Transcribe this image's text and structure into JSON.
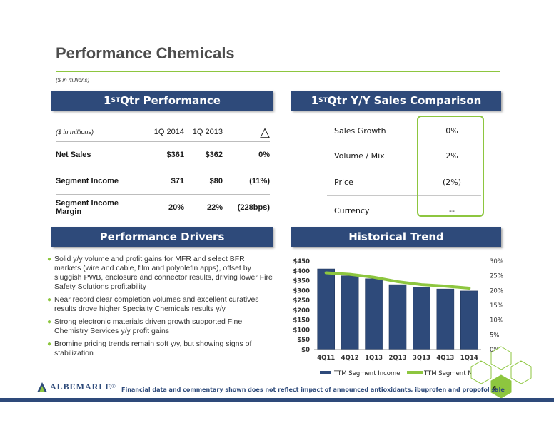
{
  "header": {
    "title": "Performance Chemicals",
    "subtitle": "($ in millions)"
  },
  "banners": {
    "performance": {
      "pre": "1",
      "sup": "ST",
      "post": " Qtr Performance"
    },
    "comparison": {
      "pre": "1",
      "sup": "ST",
      "post": " Qtr Y/Y Sales Comparison"
    },
    "drivers": "Performance Drivers",
    "trend": "Historical Trend"
  },
  "performance_table": {
    "header": [
      "($ in millions)",
      "1Q 2014",
      "1Q 2013",
      "△"
    ],
    "rows": [
      [
        "Net Sales",
        "$361",
        "$362",
        "0%"
      ],
      [
        "Segment Income",
        "$71",
        "$80",
        "(11%)"
      ],
      [
        "Segment Income Margin",
        "20%",
        "22%",
        "(228bps)"
      ]
    ]
  },
  "sales_comparison": [
    {
      "label": "Sales Growth",
      "value": "0%"
    },
    {
      "label": "Volume / Mix",
      "value": "2%"
    },
    {
      "label": "Price",
      "value": "(2%)"
    },
    {
      "label": "Currency",
      "value": "--"
    }
  ],
  "drivers": [
    "Solid y/y volume and profit gains for MFR and select BFR markets (wire and cable, film and polyolefin apps), offset by sluggish PWB, enclosure and connector results, driving lower Fire Safety Solutions profitability",
    "Near record clear completion volumes and excellent curatives results drove higher Specialty Chemicals results y/y",
    "Strong electronic materials driven growth supported Fine Chemistry Services y/y profit gains",
    "Bromine pricing trends remain soft y/y, but showing signs of stabilization"
  ],
  "chart_data": {
    "type": "bar",
    "categories": [
      "4Q11",
      "4Q12",
      "1Q13",
      "2Q13",
      "3Q13",
      "4Q13",
      "1Q14"
    ],
    "series": [
      {
        "name": "TTM Segment Income",
        "type": "bar",
        "axis": "left",
        "values": [
          410,
          375,
          360,
          330,
          318,
          308,
          298
        ],
        "color": "#2e4a7a"
      },
      {
        "name": "TTM Segment Margin",
        "type": "line",
        "axis": "right",
        "values": [
          26,
          25.5,
          24.5,
          23,
          22,
          21.5,
          20.8
        ],
        "color": "#8dc63f"
      }
    ],
    "ylim": [
      0,
      450
    ],
    "y_ticks": [
      "$0",
      "$50",
      "$100",
      "$150",
      "$200",
      "$250",
      "$300",
      "$350",
      "$400",
      "$450"
    ],
    "y2lim": [
      0,
      30
    ],
    "y2_ticks": [
      "0%",
      "5%",
      "10%",
      "15%",
      "20%",
      "25%",
      "30%"
    ],
    "legend": "bottom"
  },
  "footer": {
    "logo_text": "ALBEMARLE",
    "registered": "®",
    "note": "Financial data and commentary shown does not reflect impact of announced antioxidants, ibuprofen and propofol sale",
    "page": "6"
  }
}
